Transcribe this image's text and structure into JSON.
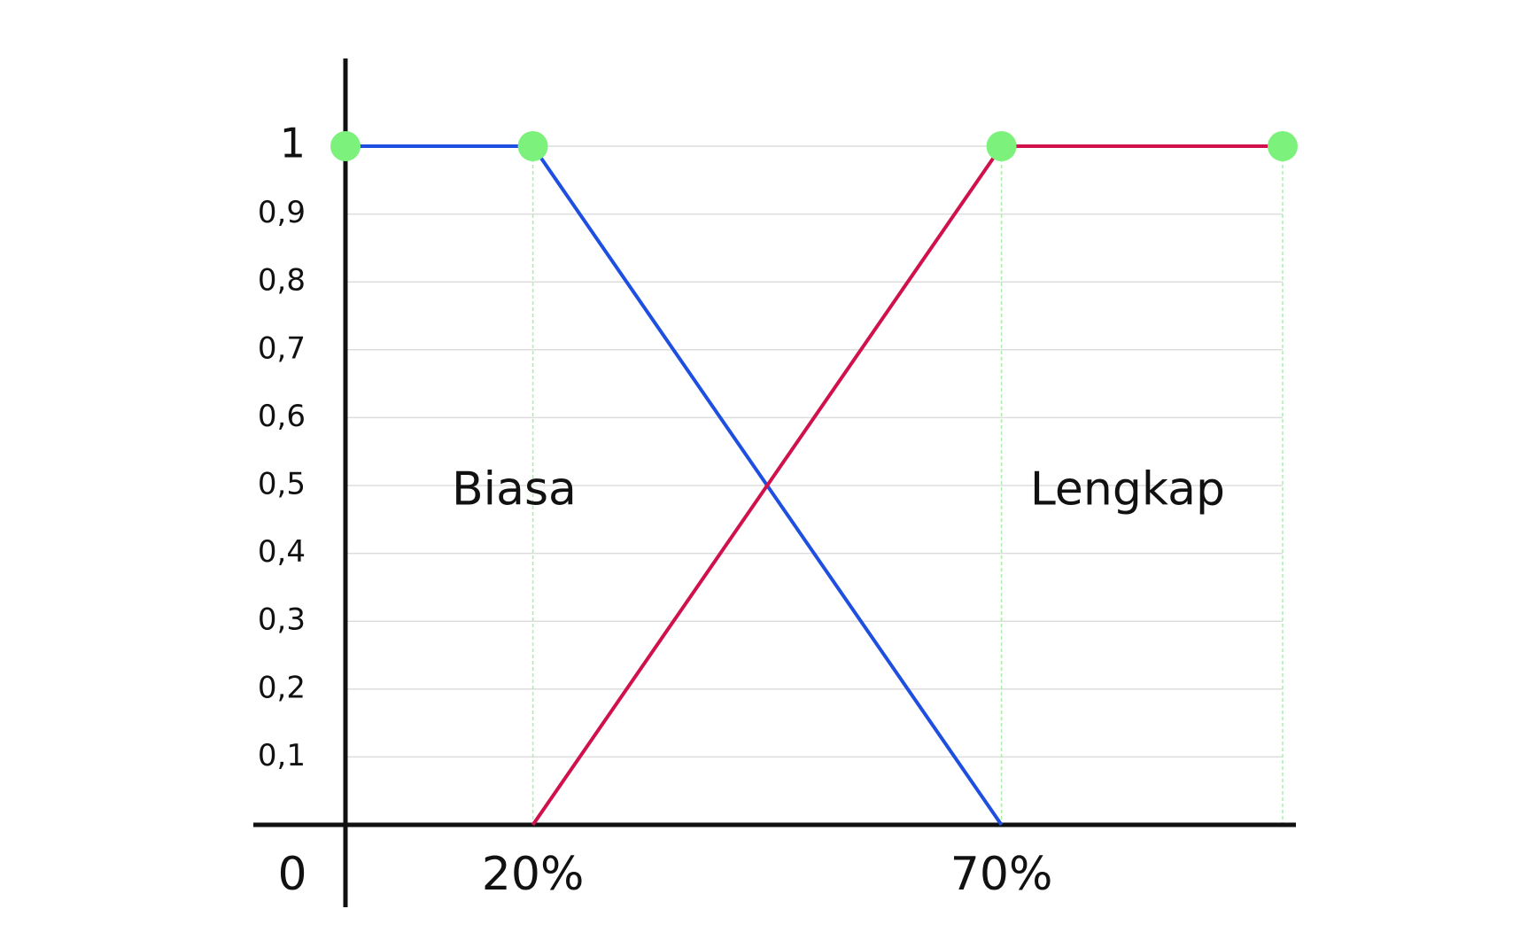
{
  "chart_data": {
    "type": "line",
    "title": "",
    "xlabel": "",
    "ylabel": "",
    "x_tick_labels": [
      "0",
      "20%",
      "70%"
    ],
    "y_tick_labels": [
      "1",
      "0,9",
      "0,8",
      "0,7",
      "0,6",
      "0,5",
      "0,4",
      "0,3",
      "0,2",
      "0,1"
    ],
    "y_ticks": [
      1,
      0.9,
      0.8,
      0.7,
      0.6,
      0.5,
      0.4,
      0.3,
      0.2,
      0.1
    ],
    "ylim": [
      0,
      1
    ],
    "xlim": [
      0,
      100
    ],
    "grid": true,
    "series": [
      {
        "name": "Biasa",
        "color": "#1f4fe0",
        "points": [
          [
            0,
            1
          ],
          [
            20,
            1
          ],
          [
            70,
            0
          ]
        ]
      },
      {
        "name": "Lengkap",
        "color": "#d0114b",
        "points": [
          [
            20,
            0
          ],
          [
            70,
            1
          ],
          [
            100,
            1
          ]
        ]
      }
    ],
    "markers": [
      [
        0,
        1
      ],
      [
        20,
        1
      ],
      [
        70,
        1
      ],
      [
        100,
        1
      ]
    ],
    "marker_color": "#7cf27c",
    "guide_lines_x": [
      20,
      70,
      100
    ],
    "guide_color": "#a8f0a8",
    "grid_color": "#dddddd",
    "axis_color": "#111111"
  }
}
